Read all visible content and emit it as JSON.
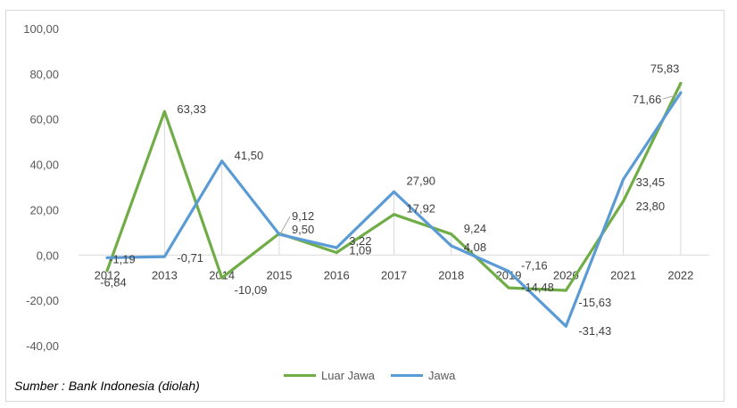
{
  "source_note": "Sumber : Bank Indonesia (diolah)",
  "colors": {
    "luar_jawa": "#70ad47",
    "jawa": "#5b9bd5"
  },
  "chart_data": {
    "type": "line",
    "x": [
      "2012",
      "2013",
      "2014",
      "2015",
      "2016",
      "2017",
      "2018",
      "2019",
      "2020",
      "2021",
      "2022"
    ],
    "series": [
      {
        "name": "Luar Jawa",
        "values": [
          -6.84,
          63.33,
          -10.09,
          9.5,
          1.09,
          17.92,
          9.24,
          -14.48,
          -15.63,
          23.8,
          75.83
        ],
        "labels": [
          "-6,84",
          "63,33",
          "-10,09",
          "9,50",
          "1,09",
          "17,92",
          "9,24",
          "-14,48",
          "-15,63",
          "23,80",
          "75,83"
        ]
      },
      {
        "name": "Jawa",
        "values": [
          -1.19,
          -0.71,
          41.5,
          9.12,
          3.22,
          27.9,
          4.08,
          -7.16,
          -31.43,
          33.45,
          71.66
        ],
        "labels": [
          "-1,19",
          "-0,71",
          "41,50",
          "9,12",
          "3,22",
          "27,90",
          "4,08",
          "-7,16",
          "-31,43",
          "33,45",
          "71,66"
        ]
      }
    ],
    "yticks": [
      "100,00",
      "80,00",
      "60,00",
      "40,00",
      "20,00",
      "0,00",
      "-20,00",
      "-40,00"
    ],
    "ylim": [
      -40,
      100
    ],
    "legend_position": "bottom"
  }
}
